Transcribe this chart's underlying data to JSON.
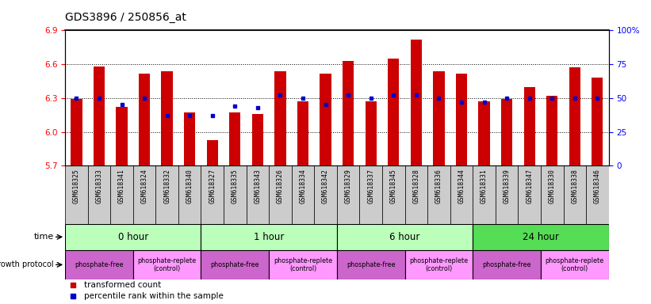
{
  "title": "GDS3896 / 250856_at",
  "samples": [
    "GSM618325",
    "GSM618333",
    "GSM618341",
    "GSM618324",
    "GSM618332",
    "GSM618340",
    "GSM618327",
    "GSM618335",
    "GSM618343",
    "GSM618326",
    "GSM618334",
    "GSM618342",
    "GSM618329",
    "GSM618337",
    "GSM618345",
    "GSM618328",
    "GSM618336",
    "GSM618344",
    "GSM618331",
    "GSM618339",
    "GSM618347",
    "GSM618330",
    "GSM618338",
    "GSM618346"
  ],
  "red_values": [
    6.29,
    6.58,
    6.22,
    6.52,
    6.54,
    6.17,
    5.93,
    6.17,
    6.16,
    6.54,
    6.27,
    6.52,
    6.63,
    6.27,
    6.65,
    6.82,
    6.54,
    6.52,
    6.27,
    6.29,
    6.4,
    6.32,
    6.57,
    6.48
  ],
  "blue_values": [
    50,
    50,
    45,
    50,
    37,
    37,
    37,
    44,
    43,
    52,
    50,
    45,
    52,
    50,
    52,
    52,
    50,
    47,
    47,
    50,
    50,
    50,
    50,
    50
  ],
  "time_groups": [
    {
      "label": "0 hour",
      "start": 0,
      "end": 6,
      "color": "#bbffbb"
    },
    {
      "label": "1 hour",
      "start": 6,
      "end": 12,
      "color": "#bbffbb"
    },
    {
      "label": "6 hour",
      "start": 12,
      "end": 18,
      "color": "#bbffbb"
    },
    {
      "label": "24 hour",
      "start": 18,
      "end": 24,
      "color": "#55dd55"
    }
  ],
  "protocol_groups": [
    {
      "label": "phosphate-free",
      "start": 0,
      "end": 3,
      "color": "#cc66cc"
    },
    {
      "label": "phosphate-replete\n(control)",
      "start": 3,
      "end": 6,
      "color": "#ff99ff"
    },
    {
      "label": "phosphate-free",
      "start": 6,
      "end": 9,
      "color": "#cc66cc"
    },
    {
      "label": "phosphate-replete\n(control)",
      "start": 9,
      "end": 12,
      "color": "#ff99ff"
    },
    {
      "label": "phosphate-free",
      "start": 12,
      "end": 15,
      "color": "#cc66cc"
    },
    {
      "label": "phosphate-replete\n(control)",
      "start": 15,
      "end": 18,
      "color": "#ff99ff"
    },
    {
      "label": "phosphate-free",
      "start": 18,
      "end": 21,
      "color": "#cc66cc"
    },
    {
      "label": "phosphate-replete\n(control)",
      "start": 21,
      "end": 24,
      "color": "#ff99ff"
    }
  ],
  "ylim_left": [
    5.7,
    6.9
  ],
  "ylim_right": [
    0,
    100
  ],
  "yticks_left": [
    5.7,
    6.0,
    6.3,
    6.6,
    6.9
  ],
  "yticks_right": [
    0,
    25,
    50,
    75,
    100
  ],
  "ytick_labels_right": [
    "0",
    "25",
    "50",
    "75",
    "100%"
  ],
  "grid_lines": [
    6.0,
    6.3,
    6.6
  ],
  "baseline": 5.7,
  "bar_color": "#cc0000",
  "dot_color": "#0000cc",
  "sample_bg_color": "#cccccc",
  "fig_width": 8.21,
  "fig_height": 3.84,
  "dpi": 100
}
